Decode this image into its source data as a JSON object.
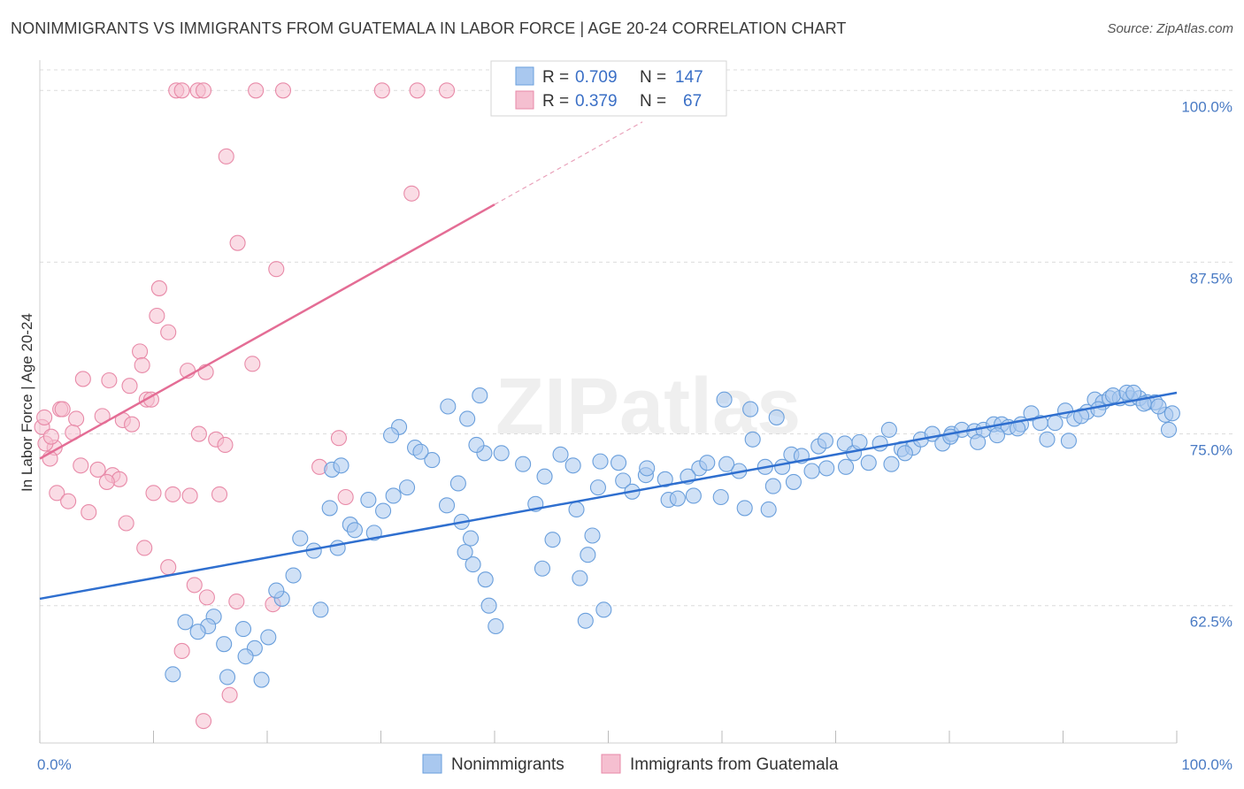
{
  "title": "NONIMMIGRANTS VS IMMIGRANTS FROM GUATEMALA IN LABOR FORCE | AGE 20-24 CORRELATION CHART",
  "source": "Source: ZipAtlas.com",
  "watermark": "ZIPatlas",
  "chart_data": {
    "type": "scatter",
    "title": "NONIMMIGRANTS VS IMMIGRANTS FROM GUATEMALA IN LABOR FORCE | AGE 20-24 CORRELATION CHART",
    "xlabel": "",
    "ylabel": "In Labor Force | Age 20-24",
    "xlim": [
      0,
      100
    ],
    "ylim": [
      52.5,
      101.5
    ],
    "x_tick_labels": [
      "0.0%",
      "100.0%"
    ],
    "y_ticks": [
      62.5,
      75.0,
      87.5,
      100.0
    ],
    "y_tick_labels": [
      "62.5%",
      "75.0%",
      "87.5%",
      "100.0%"
    ],
    "grid": true,
    "legend": {
      "position": "top-center",
      "entries": [
        {
          "r_label": "R =",
          "r_value": "0.709",
          "n_label": "N =",
          "n_value": "147"
        },
        {
          "r_label": "R =",
          "r_value": "0.379",
          "n_label": "N =",
          "n_value": "67"
        }
      ]
    },
    "series": [
      {
        "name": "Nonimmigrants",
        "color": "#6a9fdc",
        "fill": "#a9c8ef",
        "trend": {
          "x0": 0,
          "y0": 63.0,
          "x1": 100,
          "y1": 78.0,
          "dashed_until": null
        },
        "points": [
          [
            38.7,
            77.8
          ],
          [
            25.7,
            72.4
          ],
          [
            31.6,
            75.5
          ],
          [
            25.5,
            69.6
          ],
          [
            30.9,
            74.9
          ],
          [
            33.0,
            74.0
          ],
          [
            26.5,
            72.7
          ],
          [
            35.9,
            77.0
          ],
          [
            27.3,
            68.4
          ],
          [
            29.4,
            67.8
          ],
          [
            31.1,
            70.5
          ],
          [
            37.6,
            76.1
          ],
          [
            35.8,
            69.8
          ],
          [
            37.1,
            68.6
          ],
          [
            38.1,
            65.5
          ],
          [
            37.9,
            67.4
          ],
          [
            39.2,
            64.4
          ],
          [
            39.5,
            62.5
          ],
          [
            40.1,
            61.0
          ],
          [
            37.4,
            66.4
          ],
          [
            43.6,
            69.9
          ],
          [
            45.1,
            67.3
          ],
          [
            47.2,
            69.5
          ],
          [
            48.6,
            67.6
          ],
          [
            49.1,
            71.1
          ],
          [
            48.2,
            66.2
          ],
          [
            47.5,
            64.5
          ],
          [
            44.2,
            65.2
          ],
          [
            48.0,
            61.4
          ],
          [
            49.6,
            62.2
          ],
          [
            51.3,
            71.6
          ],
          [
            53.3,
            72.0
          ],
          [
            55.3,
            70.2
          ],
          [
            56.1,
            70.3
          ],
          [
            57.5,
            70.5
          ],
          [
            58.0,
            72.5
          ],
          [
            59.9,
            70.4
          ],
          [
            61.5,
            72.3
          ],
          [
            62.0,
            69.6
          ],
          [
            64.1,
            69.5
          ],
          [
            64.5,
            71.2
          ],
          [
            65.3,
            72.6
          ],
          [
            66.1,
            73.5
          ],
          [
            67.0,
            73.4
          ],
          [
            68.5,
            74.1
          ],
          [
            69.2,
            72.5
          ],
          [
            70.8,
            74.3
          ],
          [
            71.6,
            73.6
          ],
          [
            72.9,
            72.9
          ],
          [
            73.9,
            74.3
          ],
          [
            74.9,
            72.8
          ],
          [
            75.8,
            73.9
          ],
          [
            76.8,
            74.0
          ],
          [
            77.5,
            74.6
          ],
          [
            78.5,
            75.0
          ],
          [
            79.4,
            74.3
          ],
          [
            80.2,
            75.0
          ],
          [
            81.1,
            75.3
          ],
          [
            82.2,
            75.2
          ],
          [
            83.0,
            75.3
          ],
          [
            83.9,
            75.7
          ],
          [
            84.6,
            75.7
          ],
          [
            85.2,
            75.5
          ],
          [
            86.3,
            75.7
          ],
          [
            87.2,
            76.5
          ],
          [
            88.0,
            75.8
          ],
          [
            89.3,
            75.8
          ],
          [
            90.2,
            76.7
          ],
          [
            91.0,
            76.1
          ],
          [
            92.1,
            76.6
          ],
          [
            92.8,
            77.5
          ],
          [
            93.5,
            77.3
          ],
          [
            94.1,
            77.6
          ],
          [
            95.0,
            77.6
          ],
          [
            95.9,
            77.6
          ],
          [
            96.7,
            77.6
          ],
          [
            97.4,
            77.3
          ],
          [
            98.1,
            77.3
          ],
          [
            99.0,
            76.4
          ],
          [
            99.6,
            76.5
          ],
          [
            80.1,
            74.8
          ],
          [
            82.5,
            74.4
          ],
          [
            84.2,
            74.9
          ],
          [
            86.0,
            75.4
          ],
          [
            88.6,
            74.6
          ],
          [
            90.5,
            74.5
          ],
          [
            91.6,
            76.3
          ],
          [
            93.1,
            76.8
          ],
          [
            94.4,
            77.8
          ],
          [
            95.6,
            78.0
          ],
          [
            96.2,
            78.0
          ],
          [
            97.1,
            77.2
          ],
          [
            98.4,
            77.0
          ],
          [
            99.3,
            75.3
          ],
          [
            76.1,
            73.6
          ],
          [
            74.7,
            75.3
          ],
          [
            72.1,
            74.4
          ],
          [
            70.9,
            72.6
          ],
          [
            69.1,
            74.5
          ],
          [
            67.9,
            72.3
          ],
          [
            66.3,
            71.5
          ],
          [
            63.8,
            72.6
          ],
          [
            62.7,
            74.6
          ],
          [
            60.4,
            72.8
          ],
          [
            58.7,
            72.9
          ],
          [
            57.0,
            71.9
          ],
          [
            55.0,
            71.7
          ],
          [
            53.4,
            72.5
          ],
          [
            52.1,
            70.8
          ],
          [
            50.9,
            72.9
          ],
          [
            49.3,
            73.0
          ],
          [
            46.9,
            72.7
          ],
          [
            45.8,
            73.5
          ],
          [
            44.4,
            71.9
          ],
          [
            42.5,
            72.8
          ],
          [
            40.6,
            73.6
          ],
          [
            39.1,
            73.6
          ],
          [
            38.4,
            74.2
          ],
          [
            36.8,
            71.4
          ],
          [
            34.5,
            73.1
          ],
          [
            33.5,
            73.7
          ],
          [
            32.3,
            71.1
          ],
          [
            30.2,
            69.4
          ],
          [
            28.9,
            70.2
          ],
          [
            27.7,
            68.0
          ],
          [
            26.2,
            66.7
          ],
          [
            24.1,
            66.5
          ],
          [
            22.3,
            64.7
          ],
          [
            21.3,
            63.0
          ],
          [
            20.1,
            60.2
          ],
          [
            18.9,
            59.4
          ],
          [
            17.9,
            60.8
          ],
          [
            16.5,
            57.3
          ],
          [
            15.3,
            61.7
          ],
          [
            14.8,
            61.0
          ],
          [
            12.8,
            61.3
          ],
          [
            11.7,
            57.5
          ],
          [
            13.9,
            60.6
          ],
          [
            16.2,
            59.7
          ],
          [
            18.1,
            58.8
          ],
          [
            19.5,
            57.1
          ],
          [
            20.8,
            63.6
          ],
          [
            22.9,
            67.4
          ],
          [
            24.7,
            62.2
          ],
          [
            62.5,
            76.8
          ],
          [
            60.2,
            77.5
          ],
          [
            64.8,
            76.2
          ]
        ]
      },
      {
        "name": "Immigrants from Guatemala",
        "color": "#e88aa8",
        "fill": "#f5bfd0",
        "trend": {
          "x0": 0,
          "y0": 73.2,
          "x1": 40,
          "y1": 91.7,
          "dashed_until": 53
        },
        "points": [
          [
            12.0,
            100.0
          ],
          [
            12.5,
            100.0
          ],
          [
            13.9,
            100.0
          ],
          [
            14.4,
            100.0
          ],
          [
            19.0,
            100.0
          ],
          [
            21.4,
            100.0
          ],
          [
            30.1,
            100.0
          ],
          [
            33.2,
            100.0
          ],
          [
            35.8,
            100.0
          ],
          [
            16.4,
            95.2
          ],
          [
            32.7,
            92.5
          ],
          [
            17.4,
            88.9
          ],
          [
            20.8,
            87.0
          ],
          [
            10.5,
            85.6
          ],
          [
            10.3,
            83.6
          ],
          [
            11.3,
            82.4
          ],
          [
            8.8,
            81.0
          ],
          [
            9.0,
            80.0
          ],
          [
            13.0,
            79.6
          ],
          [
            14.6,
            79.5
          ],
          [
            18.7,
            80.1
          ],
          [
            3.8,
            79.0
          ],
          [
            6.1,
            78.9
          ],
          [
            7.9,
            78.5
          ],
          [
            9.4,
            77.5
          ],
          [
            9.8,
            77.5
          ],
          [
            1.8,
            76.8
          ],
          [
            2.0,
            76.8
          ],
          [
            3.2,
            76.1
          ],
          [
            5.5,
            76.3
          ],
          [
            7.3,
            76.0
          ],
          [
            8.1,
            75.7
          ],
          [
            14.0,
            75.0
          ],
          [
            15.5,
            74.6
          ],
          [
            16.3,
            74.2
          ],
          [
            26.3,
            74.7
          ],
          [
            1.3,
            74.0
          ],
          [
            0.9,
            73.2
          ],
          [
            3.6,
            72.7
          ],
          [
            5.1,
            72.4
          ],
          [
            6.4,
            72.0
          ],
          [
            7.0,
            71.7
          ],
          [
            10.0,
            70.7
          ],
          [
            11.7,
            70.6
          ],
          [
            13.2,
            70.5
          ],
          [
            15.8,
            70.6
          ],
          [
            0.2,
            75.5
          ],
          [
            0.5,
            74.3
          ],
          [
            1.5,
            70.7
          ],
          [
            2.5,
            70.1
          ],
          [
            4.3,
            69.3
          ],
          [
            5.9,
            71.5
          ],
          [
            7.6,
            68.5
          ],
          [
            9.2,
            66.7
          ],
          [
            11.3,
            65.3
          ],
          [
            13.6,
            64.0
          ],
          [
            14.7,
            63.1
          ],
          [
            17.3,
            62.8
          ],
          [
            20.5,
            62.6
          ],
          [
            24.6,
            72.6
          ],
          [
            26.9,
            70.4
          ],
          [
            12.5,
            59.2
          ],
          [
            16.7,
            56.0
          ],
          [
            14.4,
            54.1
          ],
          [
            0.4,
            76.2
          ],
          [
            1.0,
            74.8
          ],
          [
            2.9,
            75.1
          ]
        ]
      }
    ]
  }
}
